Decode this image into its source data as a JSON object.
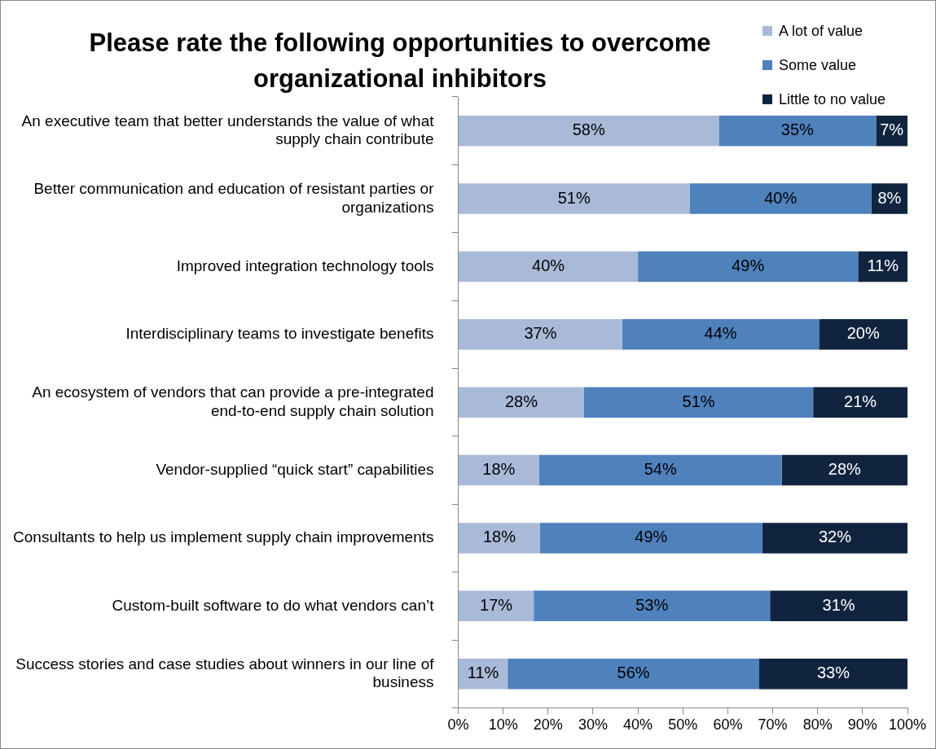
{
  "chart_data": {
    "type": "bar",
    "orientation": "horizontal",
    "stacked": true,
    "title": "Please rate the following opportunities to overcome organizational inhibitors",
    "categories": [
      "An executive team that better understands the value of what supply chain contribute",
      "Better communication and education of resistant parties or organizations",
      "Improved integration technology tools",
      "Interdisciplinary teams to investigate benefits",
      "An ecosystem of vendors that can provide a pre-integrated end-to-end supply chain solution",
      "Vendor-supplied “quick start” capabilities",
      "Consultants to help us implement supply chain improvements",
      "Custom-built software to do what vendors can’t",
      "Success stories and case studies about winners in our line of business"
    ],
    "series": [
      {
        "name": "A lot of value",
        "color": "#a9bad9",
        "values": [
          58,
          51.5,
          40,
          36.5,
          28,
          18,
          18.2,
          16.8,
          11
        ],
        "value_labels": [
          "58%",
          "51%",
          "40%",
          "37%",
          "28%",
          "18%",
          "18%",
          "17%",
          "11%"
        ]
      },
      {
        "name": "Some value",
        "color": "#4f81bd",
        "values": [
          35,
          40.5,
          49,
          43.8,
          51,
          54,
          49.5,
          52.6,
          56
        ],
        "value_labels": [
          "35%",
          "40%",
          "49%",
          "44%",
          "51%",
          "54%",
          "49%",
          "53%",
          "56%"
        ]
      },
      {
        "name": "Little to no value",
        "color": "#10243f",
        "values": [
          7,
          8,
          11,
          19.7,
          21,
          28,
          32.3,
          30.6,
          33
        ],
        "value_labels": [
          "7%",
          "8%",
          "11%",
          "20%",
          "21%",
          "28%",
          "32%",
          "31%",
          "33%"
        ]
      }
    ],
    "xlim": [
      0,
      100
    ],
    "xticks": [
      {
        "value": 0,
        "label": "0%"
      },
      {
        "value": 10,
        "label": "10%"
      },
      {
        "value": 20,
        "label": "20%"
      },
      {
        "value": 30,
        "label": "30%"
      },
      {
        "value": 40,
        "label": "40%"
      },
      {
        "value": 50,
        "label": "50%"
      },
      {
        "value": 60,
        "label": "60%"
      },
      {
        "value": 70,
        "label": "70%"
      },
      {
        "value": 80,
        "label": "80%"
      },
      {
        "value": 90,
        "label": "90%"
      },
      {
        "value": 100,
        "label": "100%"
      }
    ],
    "legend": "top right",
    "grid": false
  }
}
